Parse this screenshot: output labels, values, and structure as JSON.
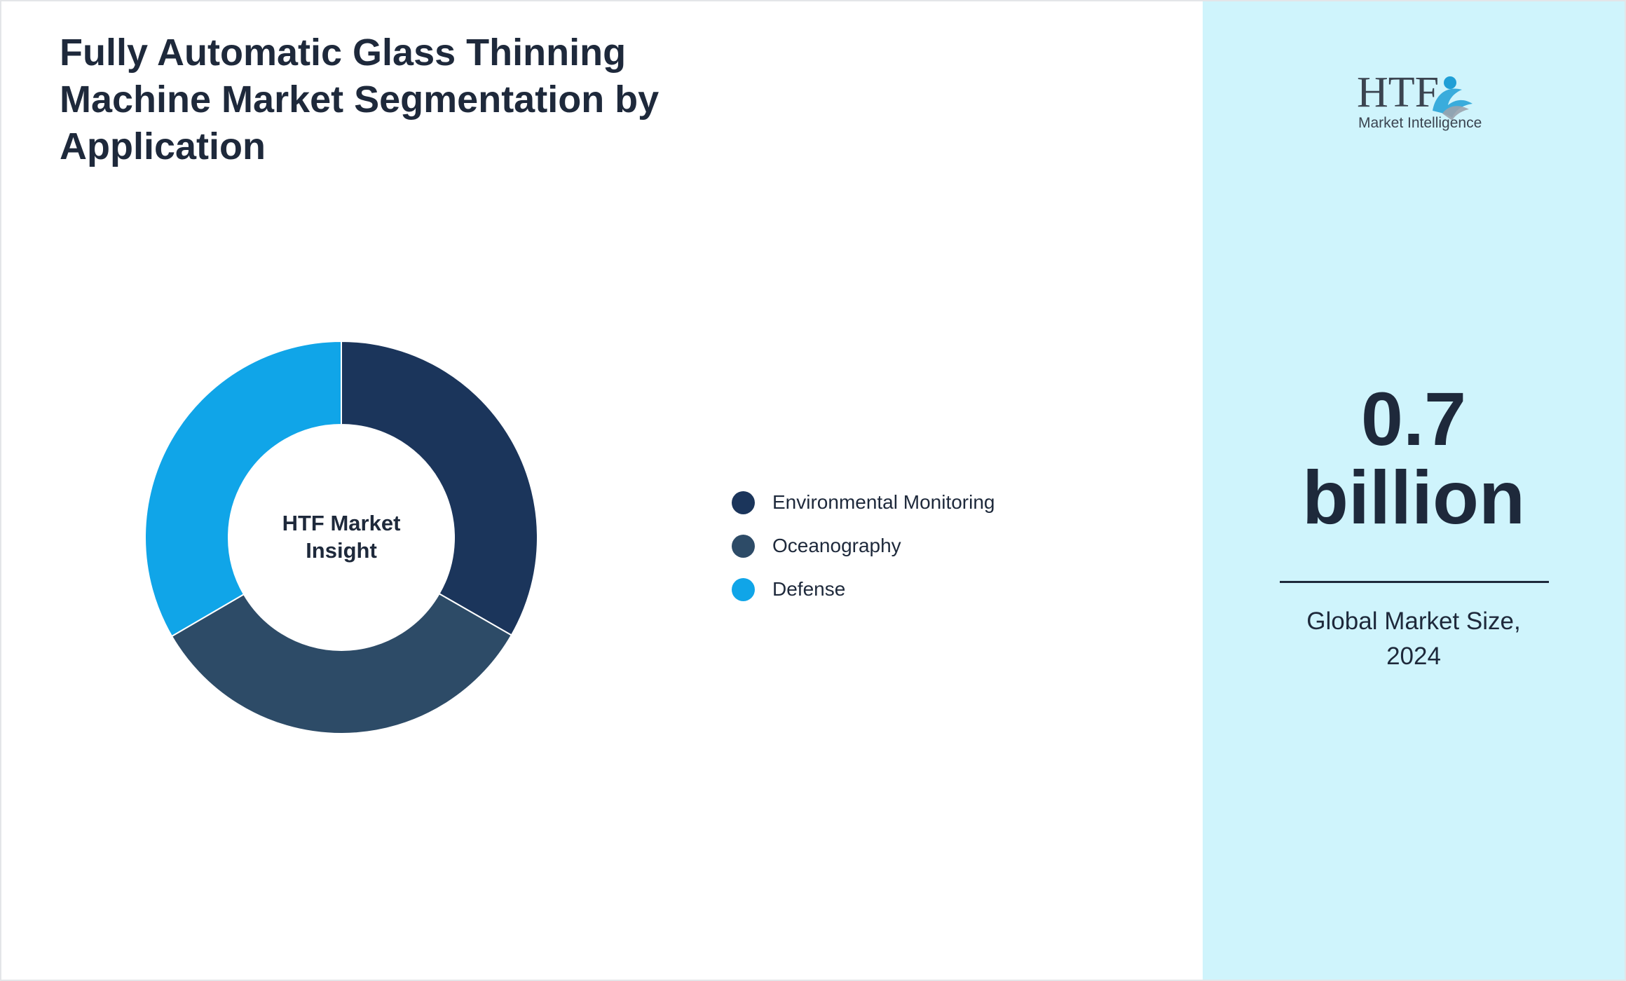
{
  "chart_data": {
    "type": "pie",
    "title": "Fully Automatic Glass Thinning Machine Market Segmentation by Application",
    "center_label": "HTF Market Insight",
    "categories": [
      "Environmental Monitoring",
      "Oceanography",
      "Defense"
    ],
    "values": [
      33.3,
      33.3,
      33.4
    ],
    "colors": [
      "#1b355b",
      "#2d4b67",
      "#10a5e8"
    ],
    "legend_position": "right"
  },
  "colors": {
    "right_panel_background": "#cff4fc",
    "text": "#1e293b"
  },
  "summary": {
    "value": "0.7",
    "unit": "billion",
    "caption": "Global Market Size, 2024"
  },
  "logo": {
    "text_main": "HTF",
    "text_sub": "Market Intelligence"
  }
}
